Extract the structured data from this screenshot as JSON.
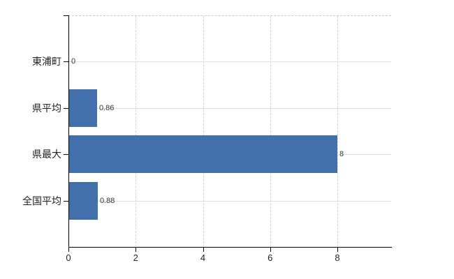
{
  "chart_data": {
    "type": "bar",
    "orientation": "horizontal",
    "title": "",
    "xlabel": "",
    "ylabel": "",
    "categories": [
      "東浦町",
      "県平均",
      "県最大",
      "全国平均"
    ],
    "values": [
      0,
      0.86,
      8,
      0.88
    ],
    "value_labels": [
      "0",
      "0.86",
      "8",
      "0.88"
    ],
    "xticks": [
      "0",
      "2",
      "4",
      "6",
      "8"
    ],
    "xtick_values": [
      0,
      2,
      4,
      6,
      8
    ],
    "xlim": [
      0,
      9.6
    ],
    "legend": "none",
    "grid": {
      "vertical": "dashed",
      "horizontal": "solid",
      "plot_top_border": "dashed"
    },
    "colors": {
      "bar": "#4170ad",
      "axis": "#000000",
      "grid_vertical": "#d4d4d4",
      "grid_horizontal": "#dde2dd",
      "plot_top_border": "#c9c9c9",
      "value_label": "#333333",
      "category_label": "#222222",
      "tick_label": "#222222",
      "background": "#ffffff"
    }
  }
}
